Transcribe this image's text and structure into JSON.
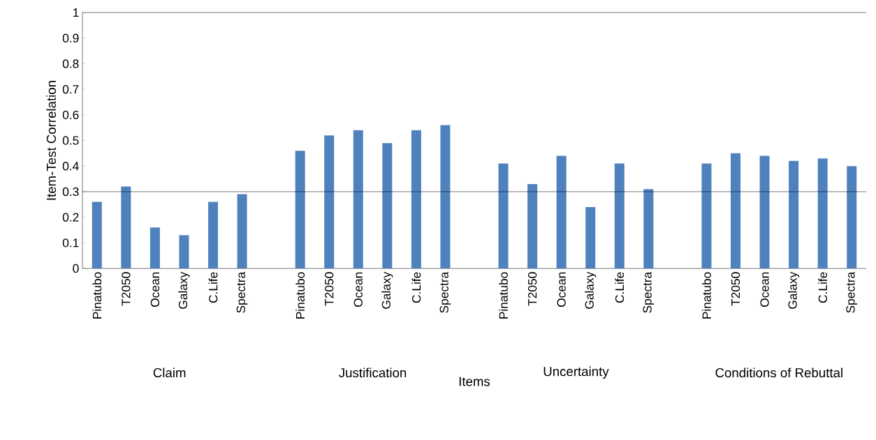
{
  "chart_data": {
    "type": "bar",
    "xlabel": "Items",
    "ylabel": "Item-Test Correlation",
    "categories": [
      "Pinatubo",
      "T2050",
      "Ocean",
      "Galaxy",
      "C.Life",
      "Spectra",
      null,
      "Pinatubo",
      "T2050",
      "Ocean",
      "Galaxy",
      "C.Life",
      "Spectra",
      null,
      "Pinatubo",
      "T2050",
      "Ocean",
      "Galaxy",
      "C.Life",
      "Spectra",
      null,
      "Pinatubo",
      "T2050",
      "Ocean",
      "Galaxy",
      "C.Life",
      "Spectra"
    ],
    "values": [
      0.26,
      0.32,
      0.16,
      0.13,
      0.26,
      0.29,
      null,
      0.46,
      0.52,
      0.54,
      0.49,
      0.54,
      0.56,
      null,
      0.41,
      0.33,
      0.44,
      0.24,
      0.41,
      0.31,
      null,
      0.41,
      0.45,
      0.44,
      0.42,
      0.43,
      0.4
    ],
    "color": "#4f81bd",
    "ylim": [
      0,
      1
    ],
    "yticks": [
      0,
      0.1,
      0.2,
      0.3,
      0.4,
      0.5,
      0.6,
      0.7,
      0.8,
      0.9,
      1
    ],
    "ref_lines": [
      {
        "axis": "y",
        "value": 0.3,
        "color": "#000000"
      }
    ],
    "annotations": [
      "Claim",
      "Justification",
      "Uncertainty",
      "Conditions of Rebuttal"
    ]
  }
}
